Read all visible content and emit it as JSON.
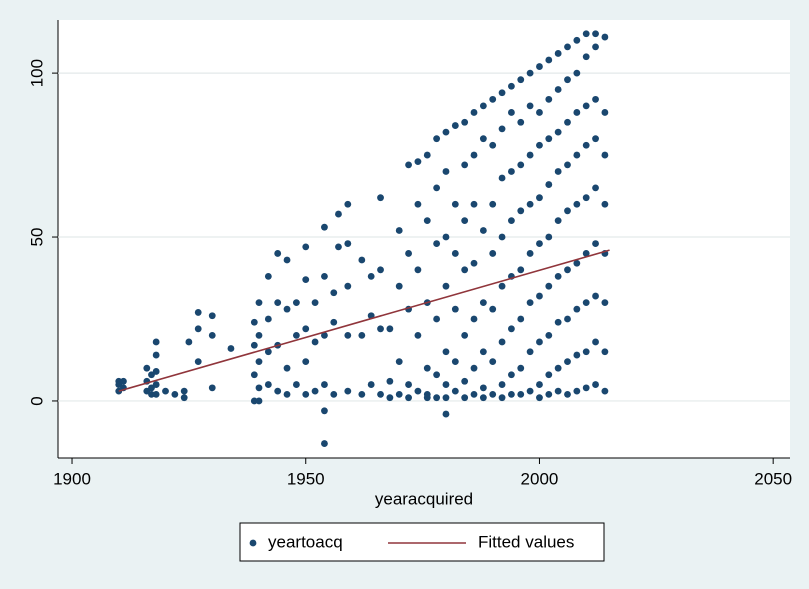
{
  "chart_data": {
    "type": "scatter",
    "x_label": "yearacquired",
    "xlim": [
      1897,
      2053.6
    ],
    "ylim": [
      -17.4,
      116.2
    ],
    "xticks": [
      1900,
      1950,
      2000,
      2050
    ],
    "yticks": [
      0,
      50,
      100
    ],
    "grid": true,
    "series": [
      {
        "name": "yeartoacq",
        "color": "#1a476f",
        "type": "scatter",
        "x": [
          1910,
          1910,
          1910,
          1911,
          1911,
          1916,
          1916,
          1916,
          1917,
          1917,
          1917,
          1918,
          1918,
          1918,
          1918,
          1918,
          1920,
          1922,
          1924,
          1924,
          1925,
          1927,
          1927,
          1927,
          1930,
          1930,
          1930,
          1934,
          1939,
          1939,
          1939,
          1939,
          1940,
          1940,
          1940,
          1940,
          1940,
          1942,
          1942,
          1942,
          1942,
          1944,
          1944,
          1944,
          1944,
          1946,
          1946,
          1946,
          1946,
          1948,
          1948,
          1948,
          1950,
          1950,
          1950,
          1950,
          1950,
          1952,
          1952,
          1952,
          1954,
          1954,
          1954,
          1954,
          1954,
          1954,
          1956,
          1956,
          1956,
          1957,
          1957,
          1959,
          1959,
          1959,
          1959,
          1959,
          1962,
          1962,
          1962,
          1964,
          1964,
          1964,
          1966,
          1966,
          1966,
          1966,
          1968,
          1968,
          1968,
          1970,
          1970,
          1970,
          1970,
          1972,
          1972,
          1972,
          1972,
          1972,
          1974,
          1974,
          1974,
          1974,
          1974,
          1976,
          1976,
          1976,
          1976,
          1976,
          1976,
          1978,
          1978,
          1978,
          1978,
          1978,
          1978,
          1980,
          1980,
          1980,
          1980,
          1980,
          1980,
          1980,
          1980,
          1982,
          1982,
          1982,
          1982,
          1982,
          1982,
          1984,
          1984,
          1984,
          1984,
          1984,
          1984,
          1984,
          1986,
          1986,
          1986,
          1986,
          1986,
          1986,
          1986,
          1988,
          1988,
          1988,
          1988,
          1988,
          1988,
          1988,
          1990,
          1990,
          1990,
          1990,
          1990,
          1990,
          1990,
          1992,
          1992,
          1992,
          1992,
          1992,
          1992,
          1992,
          1992,
          1994,
          1994,
          1994,
          1994,
          1994,
          1994,
          1994,
          1994,
          1996,
          1996,
          1996,
          1996,
          1996,
          1996,
          1996,
          1996,
          1998,
          1998,
          1998,
          1998,
          1998,
          1998,
          1998,
          1998,
          2000,
          2000,
          2000,
          2000,
          2000,
          2000,
          2000,
          2000,
          2000,
          2002,
          2002,
          2002,
          2002,
          2002,
          2002,
          2002,
          2002,
          2002,
          2004,
          2004,
          2004,
          2004,
          2004,
          2004,
          2004,
          2004,
          2004,
          2006,
          2006,
          2006,
          2006,
          2006,
          2006,
          2006,
          2006,
          2006,
          2008,
          2008,
          2008,
          2008,
          2008,
          2008,
          2008,
          2008,
          2008,
          2010,
          2010,
          2010,
          2010,
          2010,
          2010,
          2010,
          2010,
          2010,
          2012,
          2012,
          2012,
          2012,
          2012,
          2012,
          2012,
          2012,
          2012,
          2014,
          2014,
          2014,
          2014,
          2014,
          2014,
          2014,
          2014
        ],
        "values": [
          6,
          3,
          5,
          6,
          4,
          10,
          6,
          3,
          8,
          2,
          4,
          18,
          14,
          9,
          2,
          5,
          3,
          2,
          1,
          3,
          18,
          27,
          22,
          12,
          26,
          20,
          4,
          16,
          0,
          8,
          17,
          24,
          30,
          20,
          12,
          4,
          0,
          38,
          25,
          15,
          5,
          45,
          30,
          17,
          3,
          43,
          28,
          10,
          2,
          30,
          20,
          5,
          47,
          37,
          22,
          12,
          2,
          30,
          18,
          3,
          53,
          38,
          20,
          -3,
          -13,
          5,
          33,
          24,
          2,
          57,
          47,
          60,
          48,
          35,
          20,
          3,
          43,
          20,
          2,
          38,
          26,
          5,
          62,
          40,
          22,
          2,
          22,
          6,
          1,
          52,
          35,
          12,
          2,
          72,
          45,
          28,
          5,
          1,
          73,
          60,
          40,
          20,
          3,
          75,
          55,
          30,
          10,
          2,
          1,
          80,
          65,
          48,
          25,
          8,
          1,
          82,
          70,
          50,
          35,
          15,
          5,
          1,
          -4,
          84,
          60,
          45,
          28,
          12,
          3,
          85,
          72,
          55,
          40,
          20,
          6,
          1,
          88,
          75,
          60,
          42,
          25,
          10,
          2,
          90,
          80,
          52,
          30,
          15,
          4,
          1,
          92,
          78,
          60,
          45,
          28,
          12,
          2,
          94,
          83,
          68,
          50,
          35,
          18,
          5,
          1,
          96,
          88,
          70,
          55,
          38,
          22,
          8,
          2,
          98,
          85,
          72,
          58,
          40,
          25,
          10,
          2,
          100,
          90,
          75,
          60,
          45,
          30,
          15,
          3,
          102,
          88,
          78,
          62,
          48,
          32,
          18,
          5,
          1,
          104,
          92,
          80,
          66,
          50,
          35,
          20,
          8,
          2,
          106,
          95,
          82,
          70,
          55,
          38,
          24,
          10,
          3,
          108,
          98,
          85,
          72,
          58,
          40,
          25,
          12,
          2,
          110,
          100,
          88,
          75,
          60,
          42,
          28,
          14,
          3,
          112,
          105,
          90,
          78,
          62,
          45,
          30,
          15,
          4,
          112,
          108,
          92,
          80,
          65,
          48,
          32,
          18,
          5,
          111,
          88,
          75,
          60,
          45,
          30,
          15,
          3
        ]
      },
      {
        "name": "Fitted values",
        "color": "#90353b",
        "type": "line",
        "x": [
          1910,
          2015
        ],
        "values": [
          3,
          46
        ]
      }
    ]
  }
}
